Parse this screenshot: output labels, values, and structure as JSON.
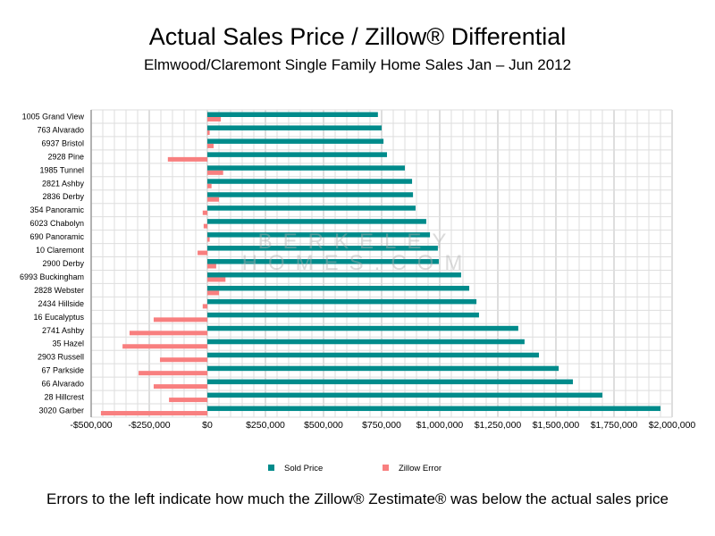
{
  "chart_data": {
    "type": "bar",
    "orientation": "horizontal",
    "title": "Actual Sales Price / Zillow® Differential",
    "subtitle": "Elmwood/Claremont Single Family Home Sales Jan – Jun 2012",
    "footer": "Errors to the left indicate how much the Zillow® Zestimate® was below the actual sales price",
    "watermark": "BERKELEY HOMES.COM",
    "categories": [
      "1005 Grand View",
      "763 Alvarado",
      "6937 Bristol",
      "2928 Pine",
      "1985 Tunnel",
      "2821 Ashby",
      "2836 Derby",
      "354 Panoramic",
      "6023 Chabolyn",
      "690 Panoramic",
      "10 Claremont",
      "2900 Derby",
      "6993 Buckingham",
      "2828 Webster",
      "2434 Hillside",
      "16 Eucalyptus",
      "2741 Ashby",
      "35 Hazel",
      "2903 Russell",
      "67 Parkside",
      "66 Alvarado",
      "28 Hillcrest",
      "3020 Garber"
    ],
    "series": [
      {
        "name": "Sold Price",
        "color": "#008b8b",
        "values": [
          734000,
          750000,
          758000,
          773000,
          850000,
          881000,
          885000,
          896000,
          942000,
          958000,
          992000,
          996000,
          1092000,
          1127000,
          1158000,
          1169000,
          1338000,
          1365000,
          1427000,
          1512000,
          1573000,
          1700000,
          1950000
        ]
      },
      {
        "name": "Zillow Error",
        "color": "#f87f7f",
        "values": [
          58000,
          10000,
          27000,
          -170000,
          68000,
          18000,
          50000,
          -20000,
          -16000,
          10000,
          -42000,
          38000,
          78000,
          50000,
          -20000,
          -231000,
          -335000,
          -365000,
          -204000,
          -296000,
          -231000,
          -165000,
          -458000
        ]
      }
    ],
    "xlim": [
      -500000,
      2000000
    ],
    "xticks": [
      -500000,
      -250000,
      0,
      250000,
      500000,
      750000,
      1000000,
      1250000,
      1500000,
      1750000,
      2000000
    ],
    "xtick_labels": [
      "-$500,000",
      "-$250,000",
      "$0",
      "$250,000",
      "$500,000",
      "$750,000",
      "$1,000,000",
      "$1,250,000",
      "$1,500,000",
      "$1,750,000",
      "$2,000,000"
    ],
    "grid_step": 50000,
    "grid": true,
    "legend": "bottom"
  }
}
